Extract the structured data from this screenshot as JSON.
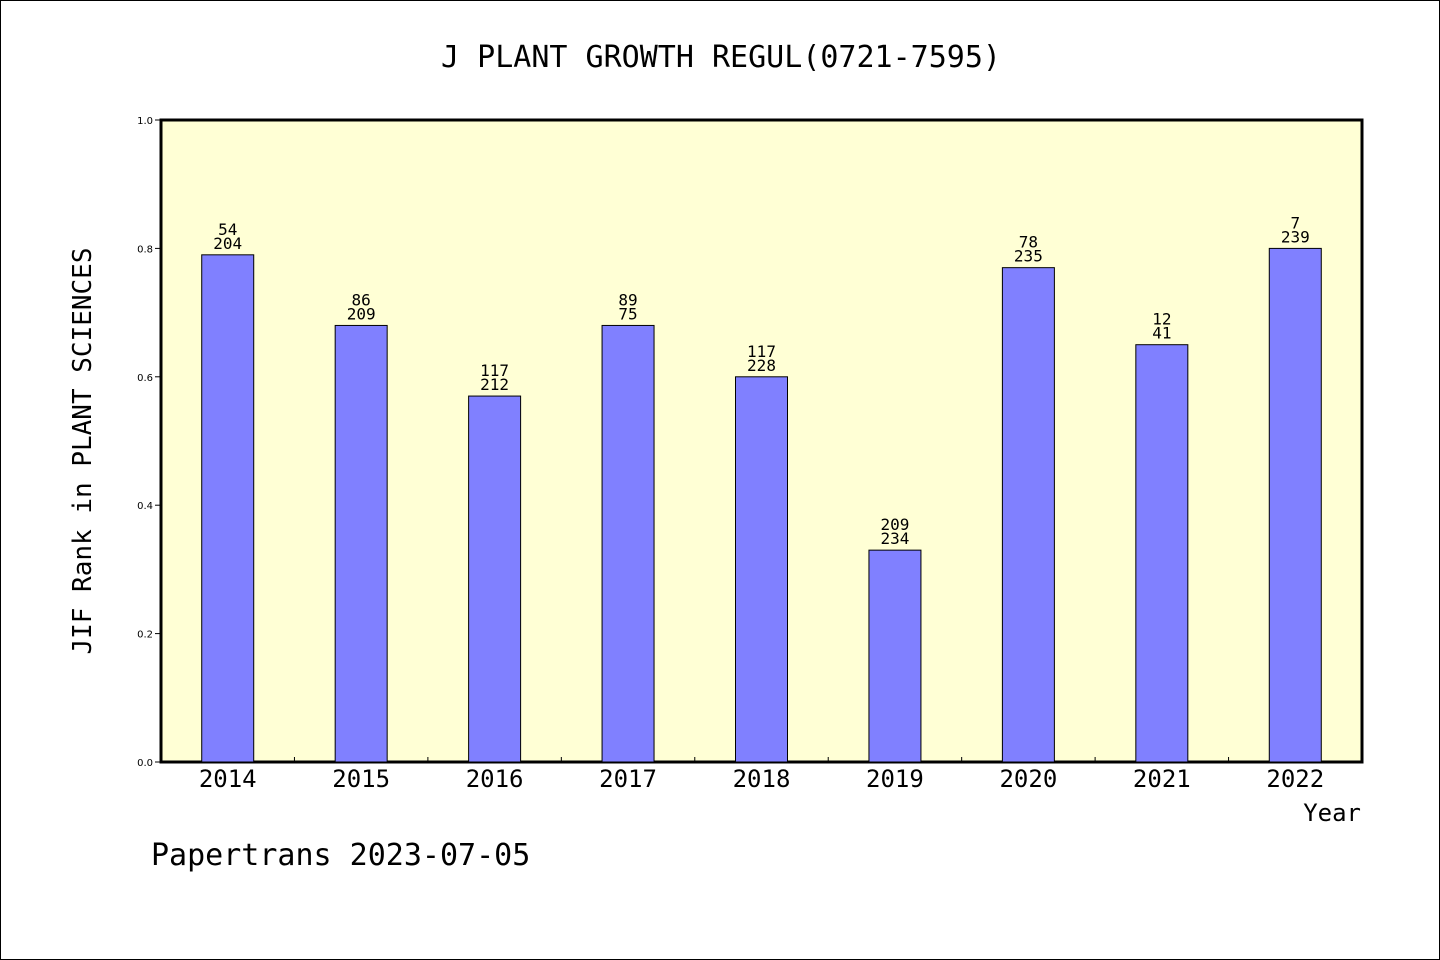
{
  "chart_data": {
    "type": "bar",
    "title": "J PLANT GROWTH REGUL(0721-7595)",
    "xlabel": "Year",
    "ylabel": "JIF Rank in PLANT SCIENCES",
    "ylim": [
      0,
      1.0
    ],
    "yticks": [
      "0.0",
      "0.2",
      "0.4",
      "0.6",
      "0.8",
      "1.0"
    ],
    "categories": [
      "2014",
      "2015",
      "2016",
      "2017",
      "2018",
      "2019",
      "2020",
      "2021",
      "2022"
    ],
    "values": [
      0.79,
      0.68,
      0.57,
      0.68,
      0.6,
      0.33,
      0.77,
      0.65,
      0.8
    ],
    "rank_labels": [
      "54",
      "86",
      "117",
      "89",
      "117",
      "209",
      "78",
      "12",
      "7"
    ],
    "total_labels": [
      "204",
      "209",
      "212",
      "75",
      "228",
      "234",
      "235",
      "41",
      "239"
    ],
    "grid": false,
    "legend": "none",
    "colors": {
      "bar_fill": "#8080ff",
      "bar_stroke": "#000000",
      "plot_background": "#ffffd5"
    }
  },
  "footer": "Papertrans 2023-07-05"
}
